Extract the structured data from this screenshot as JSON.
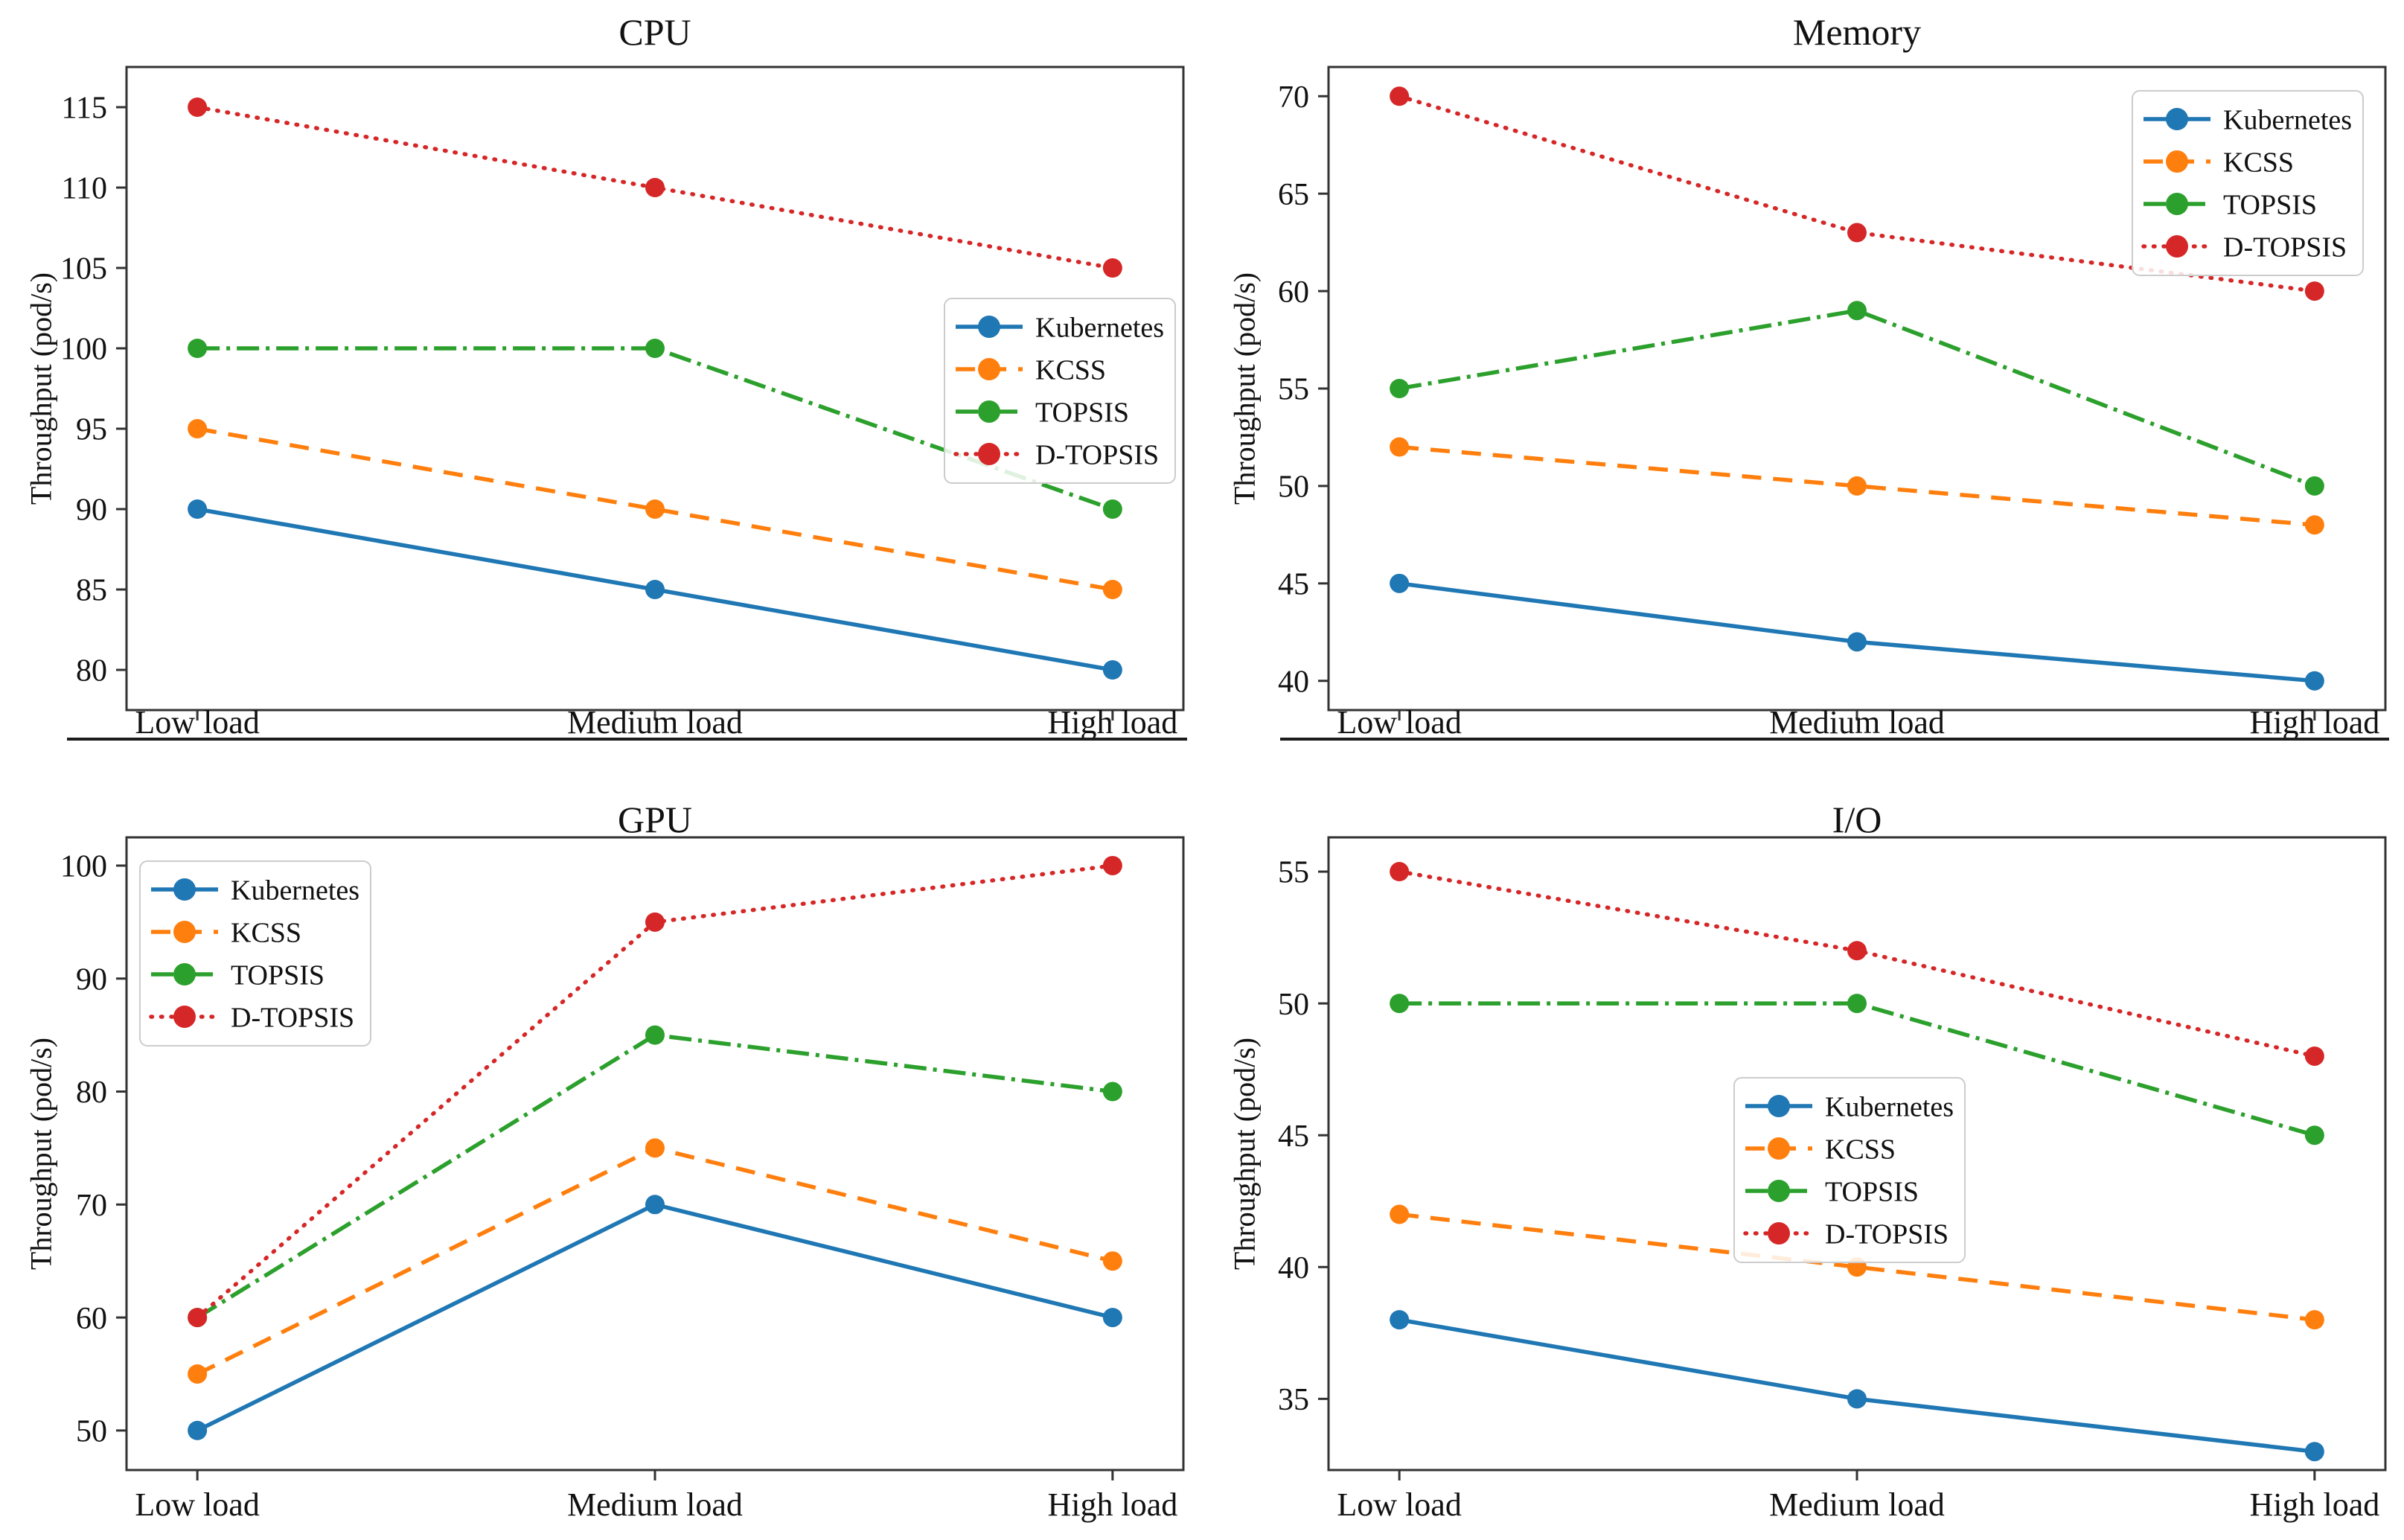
{
  "figure": {
    "ylabel": "Throughput (pod/s)",
    "categories": [
      "Low load",
      "Medium load",
      "High load"
    ],
    "colors": {
      "spine": "#333333",
      "text": "#111111",
      "separator": "#1c1c1c",
      "legend_border": "#cccccc",
      "legend_fill": "rgba(255,255,255,0.85)"
    }
  },
  "chart_data": [
    {
      "type": "line",
      "title": "CPU",
      "xlabel": "",
      "ylabel": "Throughput (pod/s)",
      "categories": [
        "Low load",
        "Medium load",
        "High load"
      ],
      "series": [
        {
          "name": "Kubernetes",
          "color": "#1f77b4",
          "style": "solid",
          "values": [
            90,
            85,
            80
          ]
        },
        {
          "name": "KCSS",
          "color": "#ff7f0e",
          "style": "dashed",
          "values": [
            95,
            90,
            85
          ]
        },
        {
          "name": "TOPSIS",
          "color": "#2ca02c",
          "style": "dashdot",
          "values": [
            100,
            100,
            90
          ]
        },
        {
          "name": "D-TOPSIS",
          "color": "#d62728",
          "style": "dotted",
          "values": [
            115,
            110,
            105
          ]
        }
      ],
      "yticks": [
        80,
        85,
        90,
        95,
        100,
        105,
        110,
        115
      ],
      "ylim": [
        77.5,
        117.5
      ],
      "grid": false,
      "legend": {
        "labels": [
          "Kubernetes",
          "KCSS",
          "TOPSIS",
          "D-TOPSIS"
        ],
        "loc": "center-right"
      }
    },
    {
      "type": "line",
      "title": "Memory",
      "xlabel": "",
      "ylabel": "Throughput (pod/s)",
      "categories": [
        "Low load",
        "Medium load",
        "High load"
      ],
      "series": [
        {
          "name": "Kubernetes",
          "color": "#1f77b4",
          "style": "solid",
          "values": [
            45,
            42,
            40
          ]
        },
        {
          "name": "KCSS",
          "color": "#ff7f0e",
          "style": "dashed",
          "values": [
            52,
            50,
            48
          ]
        },
        {
          "name": "TOPSIS",
          "color": "#2ca02c",
          "style": "dashdot",
          "values": [
            55,
            59,
            50
          ]
        },
        {
          "name": "D-TOPSIS",
          "color": "#d62728",
          "style": "dotted",
          "values": [
            70,
            63,
            60
          ]
        }
      ],
      "yticks": [
        40,
        45,
        50,
        55,
        60,
        65,
        70
      ],
      "ylim": [
        38.5,
        71.5
      ],
      "grid": false,
      "legend": {
        "labels": [
          "Kubernetes",
          "KCSS",
          "TOPSIS",
          "D-TOPSIS"
        ],
        "loc": "upper-right"
      }
    },
    {
      "type": "line",
      "title": "GPU",
      "xlabel": "",
      "ylabel": "Throughput (pod/s)",
      "categories": [
        "Low load",
        "Medium load",
        "High load"
      ],
      "series": [
        {
          "name": "Kubernetes",
          "color": "#1f77b4",
          "style": "solid",
          "values": [
            50,
            70,
            60
          ]
        },
        {
          "name": "KCSS",
          "color": "#ff7f0e",
          "style": "dashed",
          "values": [
            55,
            75,
            65
          ]
        },
        {
          "name": "TOPSIS",
          "color": "#2ca02c",
          "style": "dashdot",
          "values": [
            60,
            85,
            80
          ]
        },
        {
          "name": "D-TOPSIS",
          "color": "#d62728",
          "style": "dotted",
          "values": [
            60,
            95,
            100
          ]
        }
      ],
      "yticks": [
        50,
        60,
        70,
        80,
        90,
        100
      ],
      "ylim": [
        46.5,
        102.5
      ],
      "grid": false,
      "legend": {
        "labels": [
          "Kubernetes",
          "KCSS",
          "TOPSIS",
          "D-TOPSIS"
        ],
        "loc": "upper-left"
      }
    },
    {
      "type": "line",
      "title": "I/O",
      "xlabel": "",
      "ylabel": "Throughput (pod/s)",
      "categories": [
        "Low load",
        "Medium load",
        "High load"
      ],
      "series": [
        {
          "name": "Kubernetes",
          "color": "#1f77b4",
          "style": "solid",
          "values": [
            38,
            35,
            33
          ]
        },
        {
          "name": "KCSS",
          "color": "#ff7f0e",
          "style": "dashed",
          "values": [
            42,
            40,
            38
          ]
        },
        {
          "name": "TOPSIS",
          "color": "#2ca02c",
          "style": "dashdot",
          "values": [
            50,
            50,
            45
          ]
        },
        {
          "name": "D-TOPSIS",
          "color": "#d62728",
          "style": "dotted",
          "values": [
            55,
            52,
            48
          ]
        }
      ],
      "yticks": [
        35,
        40,
        45,
        50,
        55
      ],
      "ylim": [
        32.3,
        56.3
      ],
      "grid": false,
      "legend": {
        "labels": [
          "Kubernetes",
          "KCSS",
          "TOPSIS",
          "D-TOPSIS"
        ],
        "loc": "center"
      }
    }
  ]
}
